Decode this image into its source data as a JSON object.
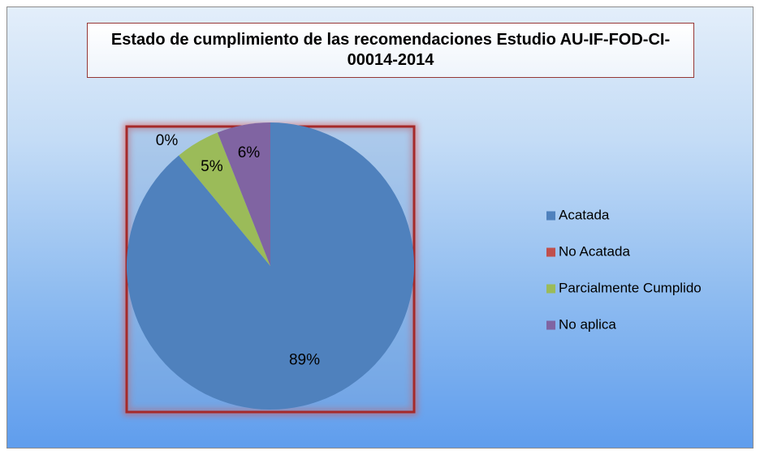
{
  "chart_data": {
    "type": "pie",
    "title": "Estado de cumplimiento de las recomendaciones Estudio AU-IF-FOD-CI-00014-2014",
    "categories": [
      "Acatada",
      "No Acatada",
      "Parcialmente Cumplido",
      "No aplica"
    ],
    "values": [
      89,
      0,
      5,
      6
    ],
    "value_labels": [
      "89%",
      "0%",
      "5%",
      "6%"
    ],
    "colors": [
      "#4f81bd",
      "#c0504d",
      "#9bbb59",
      "#8064a2"
    ],
    "legend": "right"
  }
}
